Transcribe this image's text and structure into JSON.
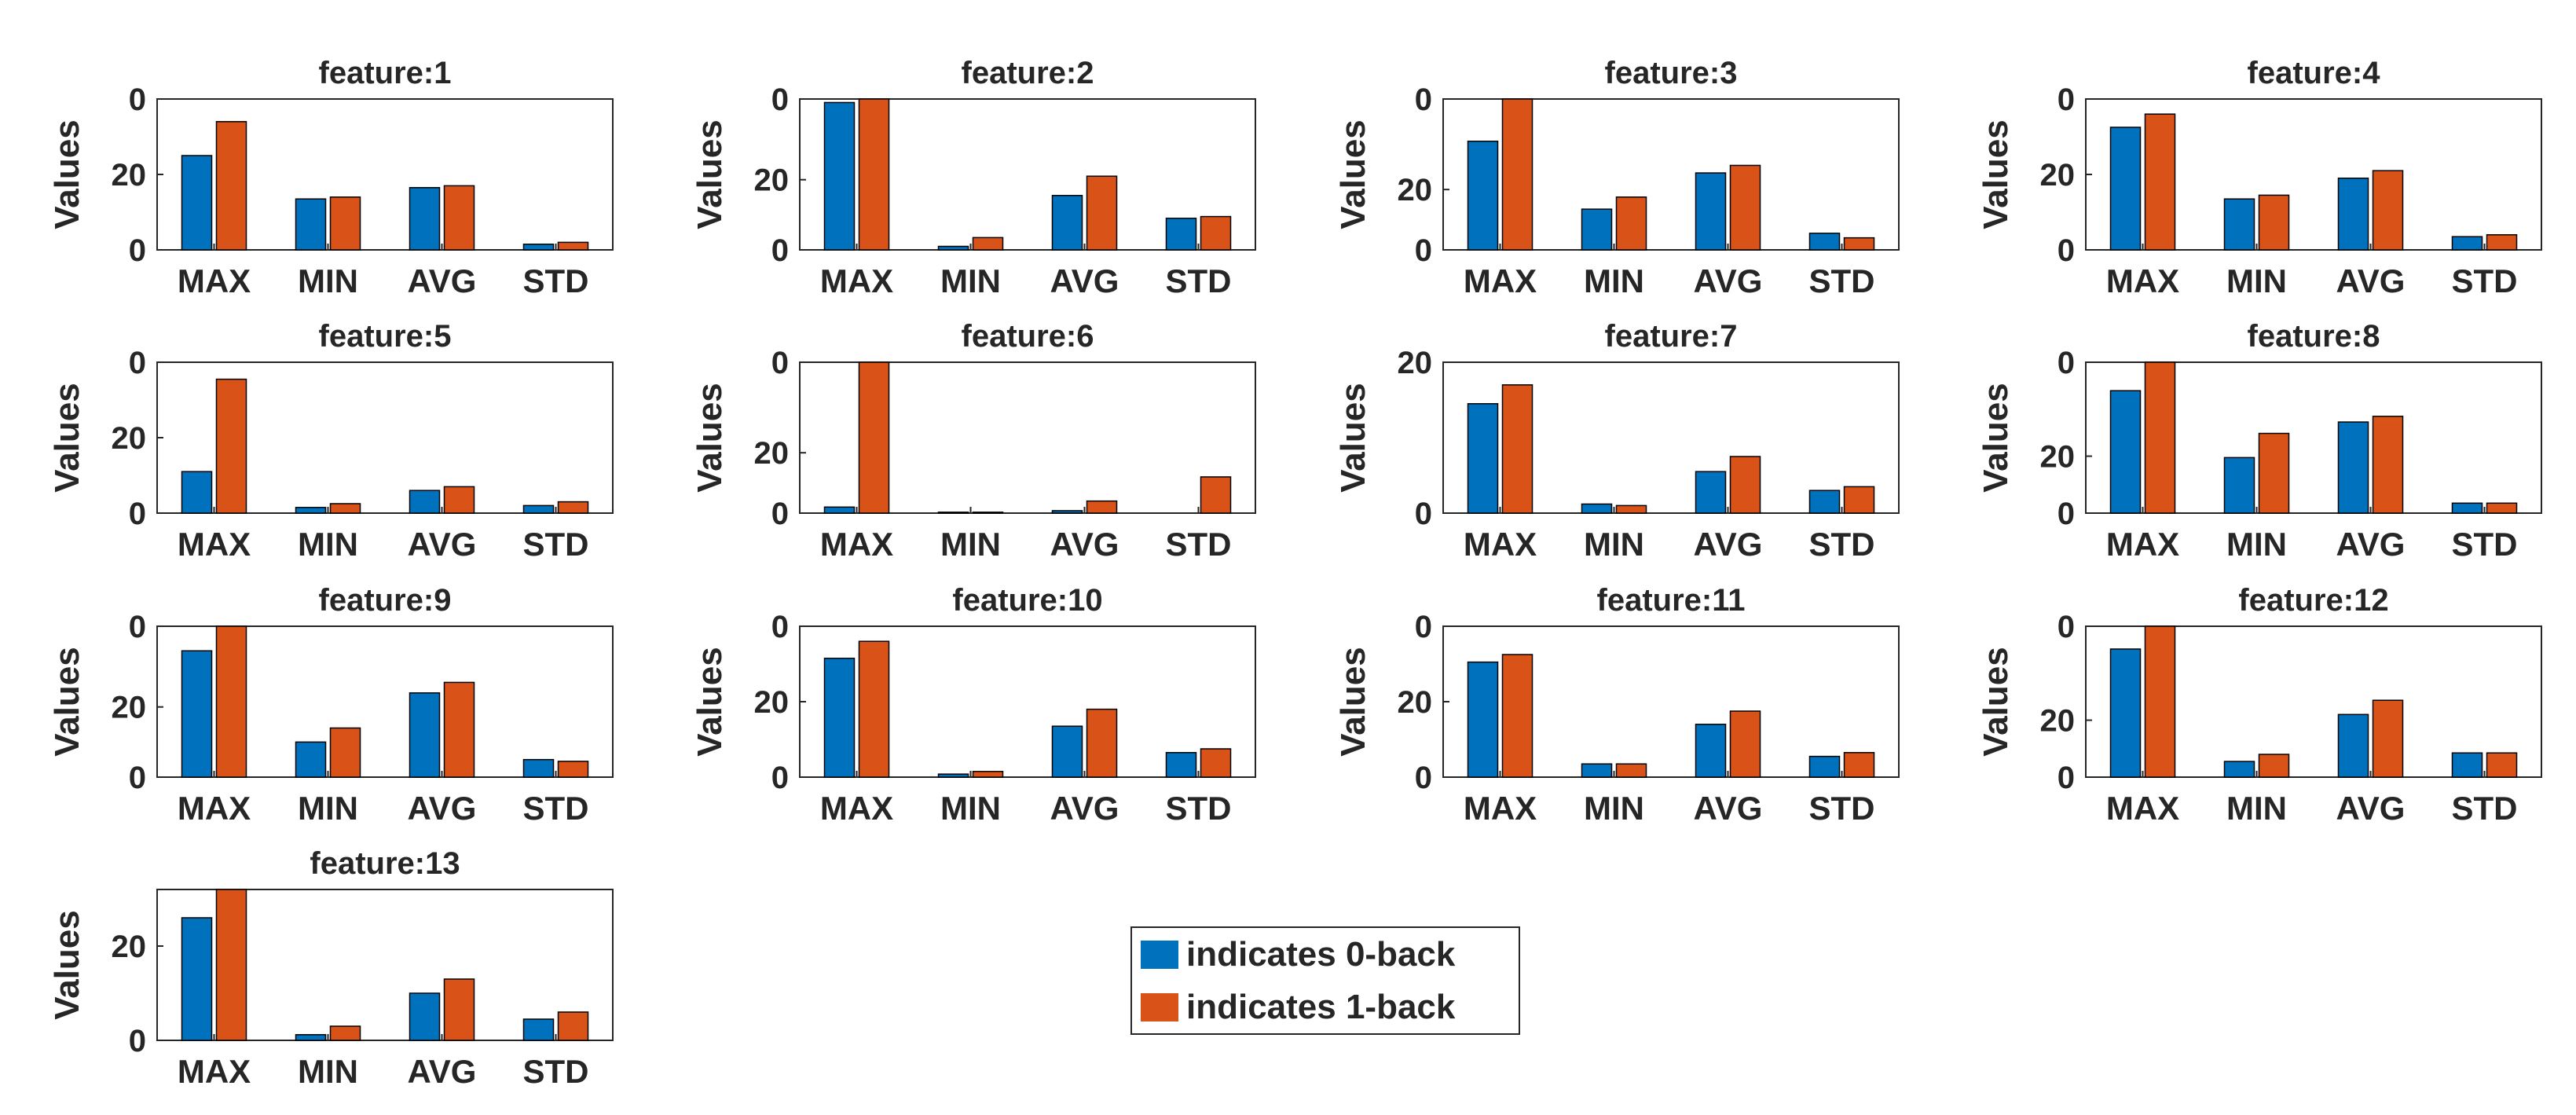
{
  "figure": {
    "legend": {
      "placement": "center, below third row",
      "entries": [
        {
          "label": "indicates 0-back",
          "color": "#0072BD"
        },
        {
          "label": "indicates 1-back",
          "color": "#D95319"
        }
      ]
    }
  },
  "chart_data": [
    {
      "type": "bar",
      "title": "feature:1",
      "ylabel": "Values",
      "categories": [
        "MAX",
        "MIN",
        "AVG",
        "STD"
      ],
      "ylim": [
        0,
        40
      ],
      "yticks": [
        0,
        20
      ],
      "ytick_labels": [
        "0",
        "20"
      ],
      "top_tick_label": "0",
      "series": [
        {
          "name": "indicates 0-back",
          "values": [
            25,
            13.5,
            16.5,
            1.5
          ]
        },
        {
          "name": "indicates 1-back",
          "values": [
            34,
            14,
            17,
            2
          ]
        }
      ]
    },
    {
      "type": "bar",
      "title": "feature:2",
      "ylabel": "Values",
      "categories": [
        "MAX",
        "MIN",
        "AVG",
        "STD"
      ],
      "ylim": [
        0,
        43
      ],
      "yticks": [
        0,
        20
      ],
      "ytick_labels": [
        "0",
        "20"
      ],
      "top_tick_label": "0",
      "series": [
        {
          "name": "indicates 0-back",
          "values": [
            42,
            1,
            15.5,
            9
          ]
        },
        {
          "name": "indicates 1-back",
          "values": [
            43,
            3.5,
            21,
            9.5
          ]
        }
      ]
    },
    {
      "type": "bar",
      "title": "feature:3",
      "ylabel": "Values",
      "categories": [
        "MAX",
        "MIN",
        "AVG",
        "STD"
      ],
      "ylim": [
        0,
        50
      ],
      "yticks": [
        0,
        20
      ],
      "ytick_labels": [
        "0",
        "20"
      ],
      "top_tick_label": "0",
      "series": [
        {
          "name": "indicates 0-back",
          "values": [
            36,
            13.5,
            25.5,
            5.5
          ]
        },
        {
          "name": "indicates 1-back",
          "values": [
            50,
            17.5,
            28,
            4
          ]
        }
      ]
    },
    {
      "type": "bar",
      "title": "feature:4",
      "ylabel": "Values",
      "categories": [
        "MAX",
        "MIN",
        "AVG",
        "STD"
      ],
      "ylim": [
        0,
        40
      ],
      "yticks": [
        0,
        20
      ],
      "ytick_labels": [
        "0",
        "20"
      ],
      "top_tick_label": "0",
      "series": [
        {
          "name": "indicates 0-back",
          "values": [
            32.5,
            13.5,
            19,
            3.5
          ]
        },
        {
          "name": "indicates 1-back",
          "values": [
            36,
            14.5,
            21,
            4
          ]
        }
      ]
    },
    {
      "type": "bar",
      "title": "feature:5",
      "ylabel": "Values",
      "categories": [
        "MAX",
        "MIN",
        "AVG",
        "STD"
      ],
      "ylim": [
        0,
        40
      ],
      "yticks": [
        0,
        20
      ],
      "ytick_labels": [
        "0",
        "20"
      ],
      "top_tick_label": "0",
      "series": [
        {
          "name": "indicates 0-back",
          "values": [
            11,
            1.5,
            6,
            2
          ]
        },
        {
          "name": "indicates 1-back",
          "values": [
            35.5,
            2.5,
            7,
            3
          ]
        }
      ]
    },
    {
      "type": "bar",
      "title": "feature:6",
      "ylabel": "Values",
      "categories": [
        "MAX",
        "MIN",
        "AVG",
        "STD"
      ],
      "ylim": [
        0,
        50
      ],
      "yticks": [
        0,
        20
      ],
      "ytick_labels": [
        "0",
        "20"
      ],
      "top_tick_label": "0",
      "series": [
        {
          "name": "indicates 0-back",
          "values": [
            2,
            0.3,
            0.8,
            0
          ]
        },
        {
          "name": "indicates 1-back",
          "values": [
            50,
            0.3,
            4,
            12
          ]
        }
      ]
    },
    {
      "type": "bar",
      "title": "feature:7",
      "ylabel": "Values",
      "categories": [
        "MAX",
        "MIN",
        "AVG",
        "STD"
      ],
      "ylim": [
        0,
        20
      ],
      "yticks": [
        0,
        20
      ],
      "ytick_labels": [
        "0",
        "20"
      ],
      "top_tick_label": "",
      "series": [
        {
          "name": "indicates 0-back",
          "values": [
            14.5,
            1.2,
            5.5,
            3
          ]
        },
        {
          "name": "indicates 1-back",
          "values": [
            17,
            1,
            7.5,
            3.5
          ]
        }
      ]
    },
    {
      "type": "bar",
      "title": "feature:8",
      "ylabel": "Values",
      "categories": [
        "MAX",
        "MIN",
        "AVG",
        "STD"
      ],
      "ylim": [
        0,
        53
      ],
      "yticks": [
        0,
        20
      ],
      "ytick_labels": [
        "0",
        "20"
      ],
      "top_tick_label": "0",
      "series": [
        {
          "name": "indicates 0-back",
          "values": [
            43,
            19.5,
            32,
            3.5
          ]
        },
        {
          "name": "indicates 1-back",
          "values": [
            53,
            28,
            34,
            3.5
          ]
        }
      ]
    },
    {
      "type": "bar",
      "title": "feature:9",
      "ylabel": "Values",
      "categories": [
        "MAX",
        "MIN",
        "AVG",
        "STD"
      ],
      "ylim": [
        0,
        43
      ],
      "yticks": [
        0,
        20
      ],
      "ytick_labels": [
        "0",
        "20"
      ],
      "top_tick_label": "0",
      "series": [
        {
          "name": "indicates 0-back",
          "values": [
            36,
            10,
            24,
            5
          ]
        },
        {
          "name": "indicates 1-back",
          "values": [
            43,
            14,
            27,
            4.5
          ]
        }
      ]
    },
    {
      "type": "bar",
      "title": "feature:10",
      "ylabel": "Values",
      "categories": [
        "MAX",
        "MIN",
        "AVG",
        "STD"
      ],
      "ylim": [
        0,
        40
      ],
      "yticks": [
        0,
        20
      ],
      "ytick_labels": [
        "0",
        "20"
      ],
      "top_tick_label": "0",
      "series": [
        {
          "name": "indicates 0-back",
          "values": [
            31.5,
            0.8,
            13.5,
            6.5
          ]
        },
        {
          "name": "indicates 1-back",
          "values": [
            36,
            1.5,
            18,
            7.5
          ]
        }
      ]
    },
    {
      "type": "bar",
      "title": "feature:11",
      "ylabel": "Values",
      "categories": [
        "MAX",
        "MIN",
        "AVG",
        "STD"
      ],
      "ylim": [
        0,
        40
      ],
      "yticks": [
        0,
        20
      ],
      "ytick_labels": [
        "0",
        "20"
      ],
      "top_tick_label": "0",
      "series": [
        {
          "name": "indicates 0-back",
          "values": [
            30.5,
            3.5,
            14,
            5.5
          ]
        },
        {
          "name": "indicates 1-back",
          "values": [
            32.5,
            3.5,
            17.5,
            6.5
          ]
        }
      ]
    },
    {
      "type": "bar",
      "title": "feature:12",
      "ylabel": "Values",
      "categories": [
        "MAX",
        "MIN",
        "AVG",
        "STD"
      ],
      "ylim": [
        0,
        53
      ],
      "yticks": [
        0,
        20
      ],
      "ytick_labels": [
        "0",
        "20"
      ],
      "top_tick_label": "0",
      "series": [
        {
          "name": "indicates 0-back",
          "values": [
            45,
            5.5,
            22,
            8.5
          ]
        },
        {
          "name": "indicates 1-back",
          "values": [
            53,
            8,
            27,
            8.5
          ]
        }
      ]
    },
    {
      "type": "bar",
      "title": "feature:13",
      "ylabel": "Values",
      "categories": [
        "MAX",
        "MIN",
        "AVG",
        "STD"
      ],
      "ylim": [
        0,
        32
      ],
      "yticks": [
        0,
        20
      ],
      "ytick_labels": [
        "0",
        "20"
      ],
      "top_tick_label": "",
      "series": [
        {
          "name": "indicates 0-back",
          "values": [
            26,
            1.2,
            10,
            4.5
          ]
        },
        {
          "name": "indicates 1-back",
          "values": [
            32,
            3,
            13,
            6
          ]
        }
      ]
    }
  ]
}
